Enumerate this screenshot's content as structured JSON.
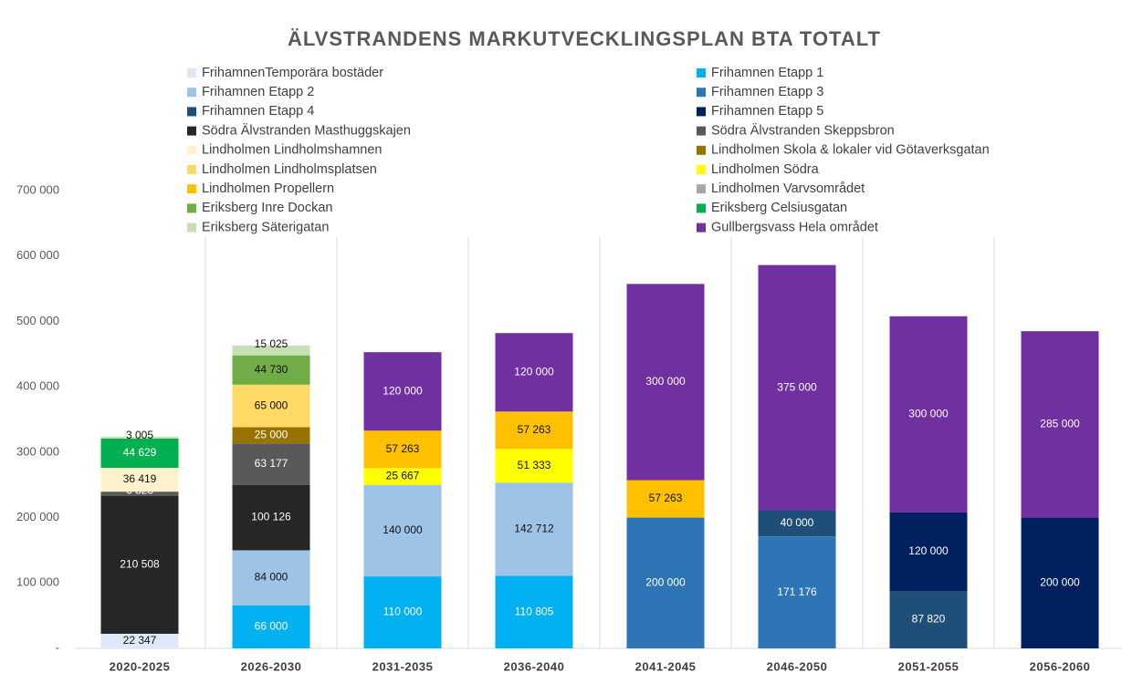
{
  "chart_data": {
    "type": "stacked_bar",
    "title": "ÄLVSTRANDENS MARKUTVECKLINGSPLAN BTA TOTALT",
    "categories": [
      "2020-2025",
      "2026-2030",
      "2031-2035",
      "2036-2040",
      "2041-2045",
      "2046-2050",
      "2051-2055",
      "2056-2060"
    ],
    "ylim": [
      0,
      700000
    ],
    "yticks": [
      {
        "value": 0,
        "label": "-"
      },
      {
        "value": 100000,
        "label": "100 000"
      },
      {
        "value": 200000,
        "label": "200 000"
      },
      {
        "value": 300000,
        "label": "300 000"
      },
      {
        "value": 400000,
        "label": "400 000"
      },
      {
        "value": 500000,
        "label": "500 000"
      },
      {
        "value": 600000,
        "label": "600 000"
      },
      {
        "value": 700000,
        "label": "700 000"
      }
    ],
    "series": [
      {
        "name": "FrihamnenTemporära bostäder",
        "color": "#dde9f7",
        "values": [
          22347,
          null,
          null,
          null,
          null,
          null,
          null,
          null
        ],
        "value_labels": [
          "22 347",
          null,
          null,
          null,
          null,
          null,
          null,
          null
        ]
      },
      {
        "name": "Frihamnen Etapp 1",
        "color": "#00b0f0",
        "values": [
          null,
          66000,
          110000,
          110805,
          null,
          null,
          null,
          null
        ],
        "value_labels": [
          null,
          "66 000",
          "110 000",
          "110 805",
          null,
          null,
          null,
          null
        ]
      },
      {
        "name": "Frihamnen Etapp 2",
        "color": "#9dc3e6",
        "values": [
          null,
          84000,
          140000,
          142712,
          null,
          null,
          null,
          null
        ],
        "value_labels": [
          null,
          "84 000",
          "140 000",
          "142 712",
          null,
          null,
          null,
          null
        ]
      },
      {
        "name": "Frihamnen Etapp 3",
        "color": "#2e75b6",
        "values": [
          null,
          null,
          null,
          null,
          200000,
          171176,
          null,
          null
        ],
        "value_labels": [
          null,
          null,
          null,
          null,
          "200 000",
          "171 176",
          null,
          null
        ]
      },
      {
        "name": "Frihamnen Etapp 4",
        "color": "#1f4e79",
        "values": [
          null,
          null,
          null,
          null,
          null,
          40000,
          87820,
          null
        ],
        "value_labels": [
          null,
          null,
          null,
          null,
          null,
          "40 000",
          "87 820",
          null
        ]
      },
      {
        "name": "Frihamnen Etapp 5",
        "color": "#002060",
        "values": [
          null,
          null,
          null,
          null,
          null,
          null,
          120000,
          200000
        ],
        "value_labels": [
          null,
          null,
          null,
          null,
          null,
          null,
          "120 000",
          "200 000"
        ]
      },
      {
        "name": "Södra Älvstranden Masthuggskajen",
        "color": "#262626",
        "values": [
          210508,
          100126,
          null,
          null,
          null,
          null,
          null,
          null
        ],
        "value_labels": [
          "210 508",
          "100 126",
          null,
          null,
          null,
          null,
          null,
          null
        ]
      },
      {
        "name": "Södra Älvstranden Skeppsbron",
        "color": "#595959",
        "values": [
          6823,
          63177,
          null,
          null,
          null,
          null,
          null,
          null
        ],
        "value_labels": [
          "6 823",
          "63 177",
          null,
          null,
          null,
          null,
          null,
          null
        ]
      },
      {
        "name": "Lindholmen Lindholmshamnen",
        "color": "#fff2cc",
        "values": [
          36419,
          null,
          null,
          null,
          null,
          null,
          null,
          null
        ],
        "value_labels": [
          "36 419",
          null,
          null,
          null,
          null,
          null,
          null,
          null
        ]
      },
      {
        "name": "Lindholmen Skola & lokaler vid Götaverksgatan",
        "color": "#997300",
        "values": [
          null,
          25000,
          null,
          null,
          null,
          null,
          null,
          null
        ],
        "value_labels": [
          null,
          "25 000",
          null,
          null,
          null,
          null,
          null,
          null
        ]
      },
      {
        "name": "Lindholmen Lindholmsplatsen",
        "color": "#ffd966",
        "values": [
          null,
          65000,
          null,
          null,
          null,
          null,
          null,
          null
        ],
        "value_labels": [
          null,
          "65 000",
          null,
          null,
          null,
          null,
          null,
          null
        ]
      },
      {
        "name": "Lindholmen Södra",
        "color": "#ffff00",
        "values": [
          null,
          null,
          25667,
          51333,
          null,
          null,
          null,
          null
        ],
        "value_labels": [
          null,
          null,
          "25 667",
          "51 333",
          null,
          null,
          null,
          null
        ]
      },
      {
        "name": "Lindholmen Propellern",
        "color": "#ffc000",
        "values": [
          null,
          null,
          57263,
          57263,
          57263,
          null,
          null,
          null
        ],
        "value_labels": [
          null,
          null,
          "57 263",
          "57 263",
          "57 263",
          null,
          null,
          null
        ]
      },
      {
        "name": "Lindholmen Varvsområdet",
        "color": "#a6a6a6",
        "values": [
          null,
          null,
          null,
          null,
          null,
          null,
          null,
          null
        ],
        "value_labels": [
          null,
          null,
          null,
          null,
          null,
          null,
          null,
          null
        ]
      },
      {
        "name": "Eriksberg Inre Dockan",
        "color": "#70ad47",
        "values": [
          null,
          44730,
          null,
          null,
          null,
          null,
          null,
          null
        ],
        "value_labels": [
          null,
          "44 730",
          null,
          null,
          null,
          null,
          null,
          null
        ]
      },
      {
        "name": "Eriksberg Celsiusgatan",
        "color": "#00b050",
        "values": [
          44629,
          null,
          null,
          null,
          null,
          null,
          null,
          null
        ],
        "value_labels": [
          "44 629",
          null,
          null,
          null,
          null,
          null,
          null,
          null
        ]
      },
      {
        "name": "Eriksberg Säterigatan",
        "color": "#c5e0b4",
        "values": [
          3005,
          15025,
          null,
          null,
          null,
          null,
          null,
          null
        ],
        "value_labels": [
          "3 005",
          "15 025",
          null,
          null,
          null,
          null,
          null,
          null
        ]
      },
      {
        "name": "Gullbergsvass Hela området",
        "color": "#7030a0",
        "values": [
          null,
          null,
          120000,
          120000,
          300000,
          375000,
          300000,
          285000
        ],
        "value_labels": [
          null,
          null,
          "120 000",
          "120 000",
          "300 000",
          "375 000",
          "300 000",
          "285 000"
        ]
      }
    ]
  }
}
